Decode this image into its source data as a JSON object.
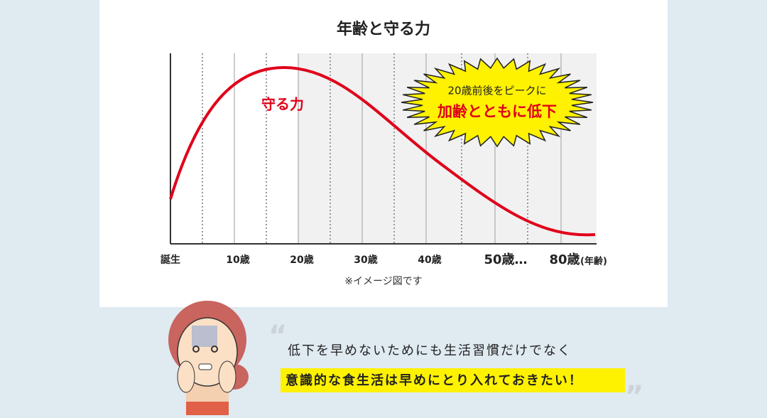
{
  "chart": {
    "title": "年齢と守る力",
    "curve_label": "守る力",
    "x_labels": [
      "誕生",
      "10歳",
      "20歳",
      "30歳",
      "40歳",
      "50歳…",
      "80歳"
    ],
    "x_unit": "(年齢)",
    "callout": [
      "20歳前後をピークに",
      "加齢とともに低下"
    ],
    "note": "※イメージ図です"
  },
  "message": {
    "lines": [
      "低下を早めないためにも生活習慣だけでなく",
      "意識的な食生活は早めにとり入れておきたい！"
    ]
  }
}
